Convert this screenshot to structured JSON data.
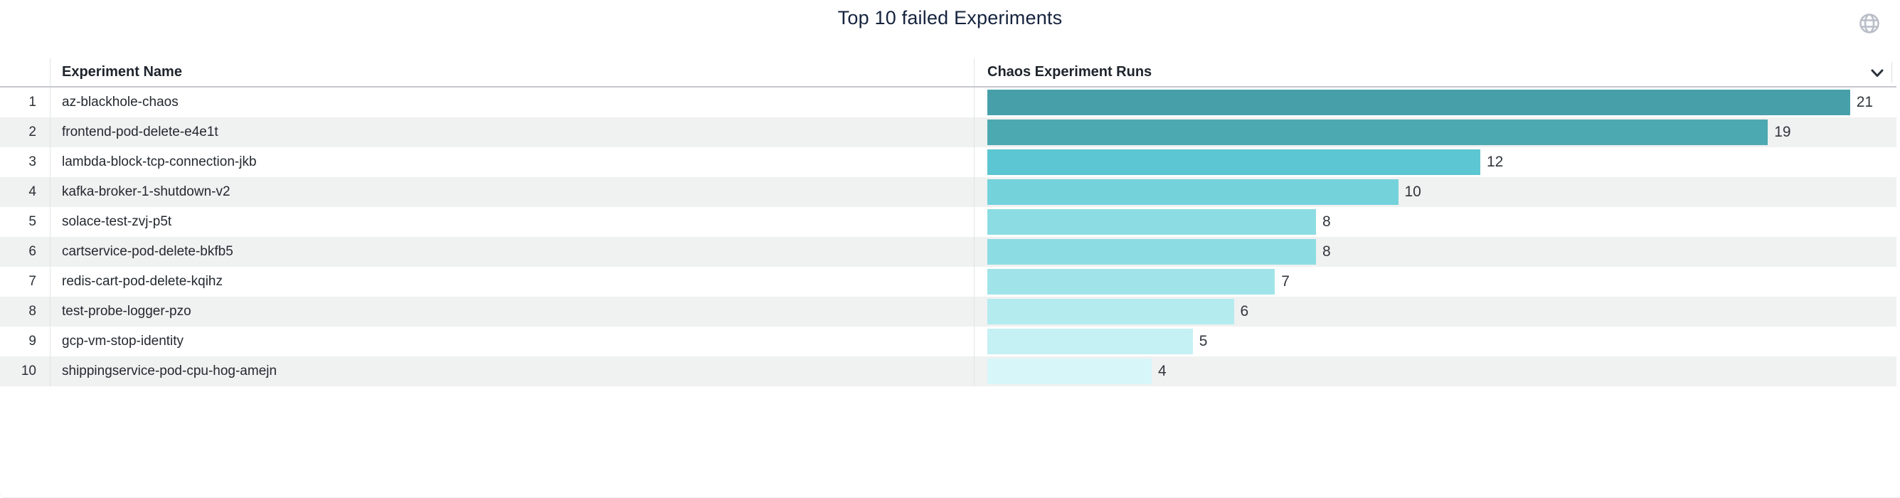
{
  "panel": {
    "title": "Top 10 failed Experiments"
  },
  "icons": {
    "globe": "globe-icon",
    "chevron": "chevron-down-icon"
  },
  "colors": {
    "title_text": "#16233e",
    "header_underline": "#c6c8cb",
    "row_alt_background": "#f0f1f1",
    "globe_icon": "#b9bec8",
    "chevron_icon": "#2b323c"
  },
  "table": {
    "columns": [
      {
        "label": "Experiment Name"
      },
      {
        "label": "Chaos Experiment Runs"
      }
    ],
    "rows": [
      {
        "rank": "1",
        "name": "az-blackhole-chaos",
        "runs": 21,
        "bar_color": "#47a0a9"
      },
      {
        "rank": "2",
        "name": "frontend-pod-delete-e4e1t",
        "runs": 19,
        "bar_color": "#4da9b1"
      },
      {
        "rank": "3",
        "name": "lambda-block-tcp-connection-jkb",
        "runs": 12,
        "bar_color": "#5cc6d2"
      },
      {
        "rank": "4",
        "name": "kafka-broker-1-shutdown-v2",
        "runs": 10,
        "bar_color": "#74d2db"
      },
      {
        "rank": "5",
        "name": "solace-test-zvj-p5t",
        "runs": 8,
        "bar_color": "#8cdde3"
      },
      {
        "rank": "6",
        "name": "cartservice-pod-delete-bkfb5",
        "runs": 8,
        "bar_color": "#8cdde3"
      },
      {
        "rank": "7",
        "name": "redis-cart-pod-delete-kqihz",
        "runs": 7,
        "bar_color": "#a0e4e9"
      },
      {
        "rank": "8",
        "name": "test-probe-logger-pzo",
        "runs": 6,
        "bar_color": "#b3ebef"
      },
      {
        "rank": "9",
        "name": "gcp-vm-stop-identity",
        "runs": 5,
        "bar_color": "#c5f0f4"
      },
      {
        "rank": "10",
        "name": "shippingservice-pod-cpu-hog-amejn",
        "runs": 4,
        "bar_color": "#d7f6f9"
      }
    ]
  },
  "chart_data": {
    "type": "bar",
    "orientation": "horizontal",
    "title": "Top 10 failed Experiments",
    "series_label": "Chaos Experiment Runs",
    "categories": [
      "az-blackhole-chaos",
      "frontend-pod-delete-e4e1t",
      "lambda-block-tcp-connection-jkb",
      "kafka-broker-1-shutdown-v2",
      "solace-test-zvj-p5t",
      "cartservice-pod-delete-bkfb5",
      "redis-cart-pod-delete-kqihz",
      "test-probe-logger-pzo",
      "gcp-vm-stop-identity",
      "shippingservice-pod-cpu-hog-amejn"
    ],
    "values": [
      21,
      19,
      12,
      10,
      8,
      8,
      7,
      6,
      5,
      4
    ],
    "value_labels_shown": true,
    "xlim": [
      0,
      21
    ],
    "grid": false,
    "legend": false,
    "bar_colors": [
      "#47a0a9",
      "#4da9b1",
      "#5cc6d2",
      "#74d2db",
      "#8cdde3",
      "#8cdde3",
      "#a0e4e9",
      "#b3ebef",
      "#c5f0f4",
      "#d7f6f9"
    ]
  }
}
